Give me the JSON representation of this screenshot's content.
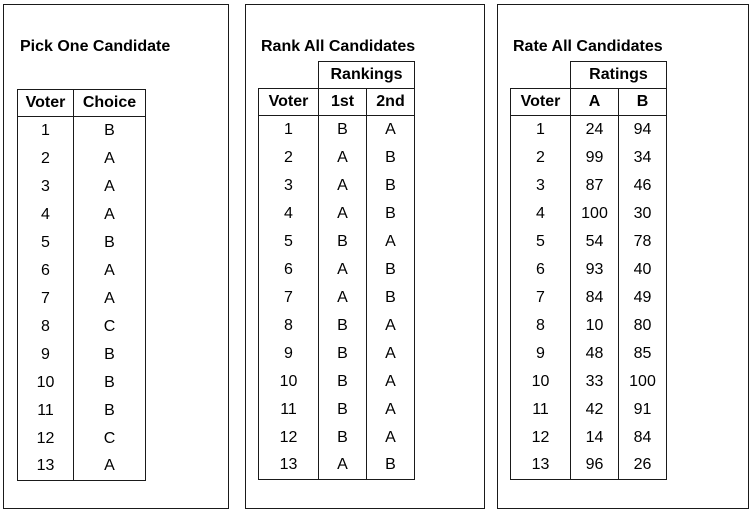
{
  "pick": {
    "title": "Pick One Candidate",
    "headers": {
      "voter": "Voter",
      "choice": "Choice"
    },
    "rows": [
      [
        "1",
        "B"
      ],
      [
        "2",
        "A"
      ],
      [
        "3",
        "A"
      ],
      [
        "4",
        "A"
      ],
      [
        "5",
        "B"
      ],
      [
        "6",
        "A"
      ],
      [
        "7",
        "A"
      ],
      [
        "8",
        "C"
      ],
      [
        "9",
        "B"
      ],
      [
        "10",
        "B"
      ],
      [
        "11",
        "B"
      ],
      [
        "12",
        "C"
      ],
      [
        "13",
        "A"
      ]
    ]
  },
  "rank": {
    "title": "Rank All Candidates",
    "group_header": "Rankings",
    "headers": {
      "voter": "Voter",
      "first": "1st",
      "second": "2nd"
    },
    "rows": [
      [
        "1",
        "B",
        "A"
      ],
      [
        "2",
        "A",
        "B"
      ],
      [
        "3",
        "A",
        "B"
      ],
      [
        "4",
        "A",
        "B"
      ],
      [
        "5",
        "B",
        "A"
      ],
      [
        "6",
        "A",
        "B"
      ],
      [
        "7",
        "A",
        "B"
      ],
      [
        "8",
        "B",
        "A"
      ],
      [
        "9",
        "B",
        "A"
      ],
      [
        "10",
        "B",
        "A"
      ],
      [
        "11",
        "B",
        "A"
      ],
      [
        "12",
        "B",
        "A"
      ],
      [
        "13",
        "A",
        "B"
      ]
    ]
  },
  "rate": {
    "title": "Rate All Candidates",
    "group_header": "Ratings",
    "headers": {
      "voter": "Voter",
      "a": "A",
      "b": "B"
    },
    "rows": [
      [
        "1",
        "24",
        "94"
      ],
      [
        "2",
        "99",
        "34"
      ],
      [
        "3",
        "87",
        "46"
      ],
      [
        "4",
        "100",
        "30"
      ],
      [
        "5",
        "54",
        "78"
      ],
      [
        "6",
        "93",
        "40"
      ],
      [
        "7",
        "84",
        "49"
      ],
      [
        "8",
        "10",
        "80"
      ],
      [
        "9",
        "48",
        "85"
      ],
      [
        "10",
        "33",
        "100"
      ],
      [
        "11",
        "42",
        "91"
      ],
      [
        "12",
        "14",
        "84"
      ],
      [
        "13",
        "96",
        "26"
      ]
    ]
  }
}
